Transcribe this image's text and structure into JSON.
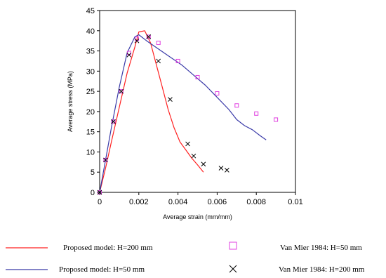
{
  "chart_data": {
    "type": "scatter",
    "title": "",
    "xlabel": "Average strain (mm/mm)",
    "ylabel": "Average stress (MPa)",
    "xlim": [
      0,
      0.01
    ],
    "ylim": [
      0,
      45
    ],
    "x_ticks": [
      0,
      0.002,
      0.004,
      0.006,
      0.008,
      0.01
    ],
    "x_tick_labels": [
      "0",
      "0.002",
      "0.004",
      "0.006",
      "0.008",
      "0.01"
    ],
    "y_ticks": [
      0,
      5,
      10,
      15,
      20,
      25,
      30,
      35,
      40,
      45
    ],
    "y_tick_labels": [
      "0",
      "5",
      "10",
      "15",
      "20",
      "25",
      "30",
      "35",
      "40",
      "45"
    ],
    "grid": false,
    "legend_position": "bottom",
    "series": [
      {
        "name": "Proposed model: H=200 mm",
        "kind": "line",
        "color": "#ff2020",
        "x": [
          0,
          0.0003,
          0.0006,
          0.001,
          0.0014,
          0.0018,
          0.002,
          0.0023,
          0.0026,
          0.0029,
          0.0032,
          0.0035,
          0.0038,
          0.0041,
          0.0044,
          0.0047,
          0.005,
          0.0053
        ],
        "y": [
          0,
          6,
          12.5,
          21,
          29.5,
          36,
          39.7,
          40,
          37,
          31.5,
          26,
          20.5,
          16,
          12.5,
          10.5,
          8.5,
          6.8,
          5
        ]
      },
      {
        "name": "Proposed model: H=50 mm",
        "kind": "line",
        "color": "#3a3aa8",
        "x": [
          0,
          0.0003,
          0.0006,
          0.001,
          0.0014,
          0.0018,
          0.002,
          0.0024,
          0.003,
          0.0036,
          0.0042,
          0.0048,
          0.0054,
          0.006,
          0.0066,
          0.007,
          0.0074,
          0.0078,
          0.0082,
          0.0085
        ],
        "y": [
          0,
          8,
          16,
          26,
          34.5,
          38.5,
          39,
          37.5,
          35.5,
          33.5,
          31.5,
          29,
          26.5,
          23.5,
          20.5,
          18,
          16.5,
          15.5,
          14,
          13
        ]
      },
      {
        "name": "Van Mier 1984: H=50 mm",
        "kind": "marker",
        "marker": "square",
        "color": "#e040e0",
        "x": [
          0,
          0.0003,
          0.0007,
          0.0011,
          0.0015,
          0.0019,
          0.0025,
          0.003,
          0.004,
          0.005,
          0.006,
          0.007,
          0.008,
          0.009
        ],
        "y": [
          0,
          8,
          17.5,
          25,
          34.5,
          38,
          38.5,
          37,
          32.5,
          28.5,
          24.5,
          21.5,
          19.5,
          18
        ]
      },
      {
        "name": "Van Mier 1984: H=200 mm",
        "kind": "marker",
        "marker": "x",
        "color": "#000000",
        "x": [
          0,
          0.0003,
          0.0007,
          0.0011,
          0.0015,
          0.0019,
          0.0025,
          0.003,
          0.0036,
          0.0045,
          0.0048,
          0.0053,
          0.0062,
          0.0065
        ],
        "y": [
          0,
          8,
          17.5,
          25,
          34,
          37.5,
          38.5,
          32.5,
          23,
          12,
          9,
          7,
          6,
          5.5
        ]
      }
    ]
  },
  "legend": {
    "items": [
      {
        "label": "Proposed model: H=200 mm",
        "series": 0
      },
      {
        "label": "Van Mier 1984: H=50 mm",
        "series": 2
      },
      {
        "label": "Proposed model: H=50 mm",
        "series": 1
      },
      {
        "label": "Van Mier 1984: H=200 mm",
        "series": 3
      }
    ]
  }
}
